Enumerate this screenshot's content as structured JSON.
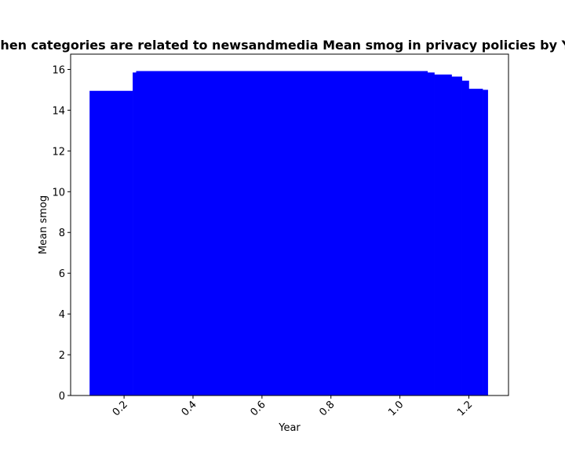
{
  "chart_data": {
    "type": "bar",
    "title": "When categories are related to newsandmedia Mean smog in privacy policies by Year",
    "xlabel": "Year",
    "ylabel": "Mean smog",
    "xlim": [
      0.045,
      1.315
    ],
    "ylim": [
      0,
      16.75
    ],
    "x_ticks": [
      0.2,
      0.4,
      0.6,
      0.8,
      1.0,
      1.2
    ],
    "x_tick_labels": [
      "0.2",
      "0.4",
      "0.6",
      "0.8",
      "1.0",
      "1.2"
    ],
    "y_ticks": [
      0,
      2,
      4,
      6,
      8,
      10,
      12,
      14,
      16
    ],
    "y_tick_labels": [
      "0",
      "2",
      "4",
      "6",
      "8",
      "10",
      "12",
      "14",
      "16"
    ],
    "x_tick_rotation": 45,
    "grid": false,
    "legend": "none",
    "bar_color": "#0000ff",
    "bars": [
      {
        "x_start": 0.1,
        "x_end": 0.225,
        "value": 14.95
      },
      {
        "x_start": 0.225,
        "x_end": 0.235,
        "value": 15.85
      },
      {
        "x_start": 0.235,
        "x_end": 1.08,
        "value": 15.92
      },
      {
        "x_start": 1.08,
        "x_end": 1.1,
        "value": 15.85
      },
      {
        "x_start": 1.1,
        "x_end": 1.15,
        "value": 15.75
      },
      {
        "x_start": 1.15,
        "x_end": 1.18,
        "value": 15.65
      },
      {
        "x_start": 1.18,
        "x_end": 1.2,
        "value": 15.45
      },
      {
        "x_start": 1.2,
        "x_end": 1.24,
        "value": 15.05
      },
      {
        "x_start": 1.24,
        "x_end": 1.255,
        "value": 15.0
      }
    ]
  }
}
